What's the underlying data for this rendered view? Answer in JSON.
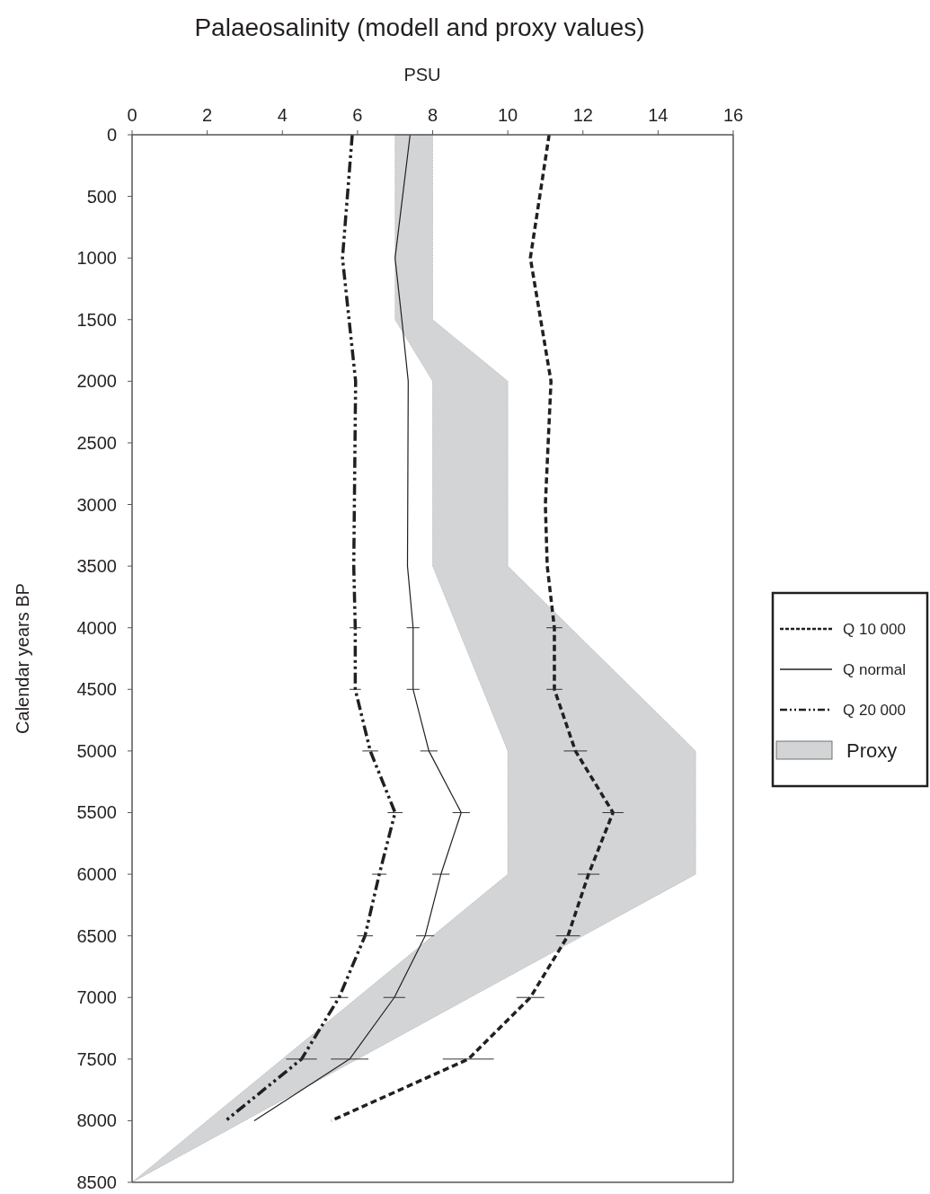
{
  "chart_data": {
    "type": "line",
    "title": "Palaeosalinity (modell and proxy values)",
    "xlabel": "PSU",
    "ylabel": "Calendar years BP",
    "xlim": [
      0,
      16
    ],
    "xticks": [
      0,
      2,
      4,
      6,
      8,
      10,
      12,
      14,
      16
    ],
    "ylim": [
      8500,
      0
    ],
    "yticks": [
      0,
      500,
      1000,
      1500,
      2000,
      2500,
      3000,
      3500,
      4000,
      4500,
      5000,
      5500,
      6000,
      6500,
      7000,
      7500,
      8000,
      8500
    ],
    "legend": "right",
    "grid": false,
    "series": [
      {
        "name": "Proxy",
        "type": "area",
        "color": "#d3d4d6",
        "values": [
          0,
          1500,
          2000,
          3500,
          5000,
          6000,
          8500,
          6000,
          5000,
          3500,
          2000,
          1500,
          0
        ],
        "x": [
          8,
          8,
          10,
          10,
          15,
          15,
          0,
          10,
          10,
          8,
          8,
          7,
          7
        ]
      },
      {
        "name": "Q 10 000",
        "line_style": "dashed",
        "color": "#231f20",
        "values": [
          0,
          1000,
          2000,
          3000,
          3500,
          4000,
          4500,
          5000,
          5500,
          6000,
          6500,
          7000,
          7500,
          8000
        ],
        "x": [
          11.1,
          10.6,
          11.15,
          11.0,
          11.05,
          11.24,
          11.24,
          11.8,
          12.8,
          12.15,
          11.6,
          10.6,
          8.95,
          5.3
        ],
        "xerrors": [
          null,
          null,
          null,
          null,
          null,
          0.21,
          0.21,
          0.31,
          0.28,
          0.29,
          0.32,
          0.37,
          0.68,
          null
        ]
      },
      {
        "name": "Q normal",
        "line_style": "solid",
        "color": "#231f20",
        "values": [
          0,
          1000,
          1500,
          2000,
          3500,
          4000,
          4500,
          5000,
          5500,
          6000,
          6500,
          7000,
          7500,
          8000
        ],
        "x": [
          7.4,
          7.0,
          7.18,
          7.35,
          7.33,
          7.48,
          7.48,
          7.9,
          8.76,
          8.22,
          7.8,
          6.98,
          5.79,
          3.25
        ],
        "xerrors": [
          null,
          null,
          null,
          null,
          null,
          0.17,
          0.17,
          0.23,
          0.23,
          0.23,
          0.24,
          0.29,
          0.5,
          null
        ]
      },
      {
        "name": "Q 20 000",
        "line_style": "dashdot",
        "color": "#231f20",
        "values": [
          0,
          1000,
          2000,
          3500,
          4000,
          4500,
          5000,
          5500,
          6000,
          6500,
          7000,
          7500,
          8000
        ],
        "x": [
          5.86,
          5.6,
          5.95,
          5.9,
          5.94,
          5.94,
          6.34,
          7.0,
          6.58,
          6.2,
          5.51,
          4.51,
          2.49
        ],
        "xerrors": [
          null,
          null,
          null,
          null,
          0.15,
          0.15,
          0.21,
          0.2,
          0.19,
          0.21,
          0.24,
          0.41,
          null
        ]
      }
    ]
  }
}
